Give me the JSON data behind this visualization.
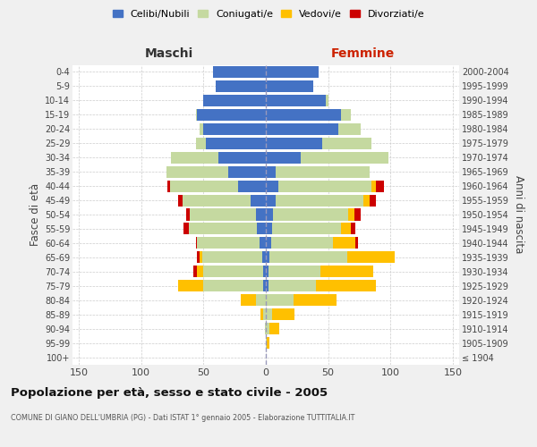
{
  "age_groups": [
    "100+",
    "95-99",
    "90-94",
    "85-89",
    "80-84",
    "75-79",
    "70-74",
    "65-69",
    "60-64",
    "55-59",
    "50-54",
    "45-49",
    "40-44",
    "35-39",
    "30-34",
    "25-29",
    "20-24",
    "15-19",
    "10-14",
    "5-9",
    "0-4"
  ],
  "birth_years": [
    "≤ 1904",
    "1905-1909",
    "1910-1914",
    "1915-1919",
    "1920-1924",
    "1925-1929",
    "1930-1934",
    "1935-1939",
    "1940-1944",
    "1945-1949",
    "1950-1954",
    "1955-1959",
    "1960-1964",
    "1965-1969",
    "1970-1974",
    "1975-1979",
    "1980-1984",
    "1985-1989",
    "1990-1994",
    "1995-1999",
    "2000-2004"
  ],
  "male": {
    "celibi": [
      0,
      0,
      0,
      0,
      0,
      2,
      2,
      3,
      5,
      7,
      8,
      12,
      22,
      30,
      38,
      48,
      50,
      55,
      50,
      40,
      42
    ],
    "coniugati": [
      0,
      0,
      1,
      2,
      8,
      48,
      48,
      48,
      50,
      55,
      53,
      55,
      55,
      50,
      38,
      8,
      3,
      1,
      0,
      0,
      0
    ],
    "vedovi": [
      0,
      0,
      0,
      2,
      12,
      20,
      5,
      2,
      0,
      0,
      0,
      0,
      0,
      0,
      0,
      0,
      0,
      0,
      0,
      0,
      0
    ],
    "divorziati": [
      0,
      0,
      0,
      0,
      0,
      0,
      3,
      2,
      1,
      4,
      3,
      3,
      2,
      0,
      0,
      0,
      0,
      0,
      0,
      0,
      0
    ]
  },
  "female": {
    "nubili": [
      0,
      0,
      0,
      0,
      0,
      2,
      2,
      3,
      4,
      5,
      6,
      8,
      10,
      8,
      28,
      45,
      58,
      60,
      48,
      38,
      42
    ],
    "coniugate": [
      0,
      1,
      3,
      5,
      22,
      38,
      42,
      62,
      50,
      55,
      60,
      70,
      75,
      75,
      70,
      40,
      18,
      8,
      2,
      0,
      0
    ],
    "vedove": [
      0,
      2,
      8,
      18,
      35,
      48,
      42,
      38,
      18,
      8,
      5,
      5,
      3,
      0,
      0,
      0,
      0,
      0,
      0,
      0,
      0
    ],
    "divorziate": [
      0,
      0,
      0,
      0,
      0,
      0,
      0,
      0,
      2,
      4,
      5,
      5,
      7,
      0,
      0,
      0,
      0,
      0,
      0,
      0,
      0
    ]
  },
  "colors": {
    "celibi_nubili": "#4472c4",
    "coniugati": "#c5d9a0",
    "vedovi": "#ffc000",
    "divorziati": "#cc0000"
  },
  "xlim": 155,
  "title": "Popolazione per età, sesso e stato civile - 2005",
  "subtitle": "COMUNE DI GIANO DELL'UMBRIA (PG) - Dati ISTAT 1° gennaio 2005 - Elaborazione TUTTITALIA.IT",
  "xlabel_left": "Maschi",
  "xlabel_right": "Femmine",
  "ylabel_left": "Fasce di età",
  "ylabel_right": "Anni di nascita",
  "bg_color": "#f0f0f0",
  "plot_bg_color": "#ffffff"
}
